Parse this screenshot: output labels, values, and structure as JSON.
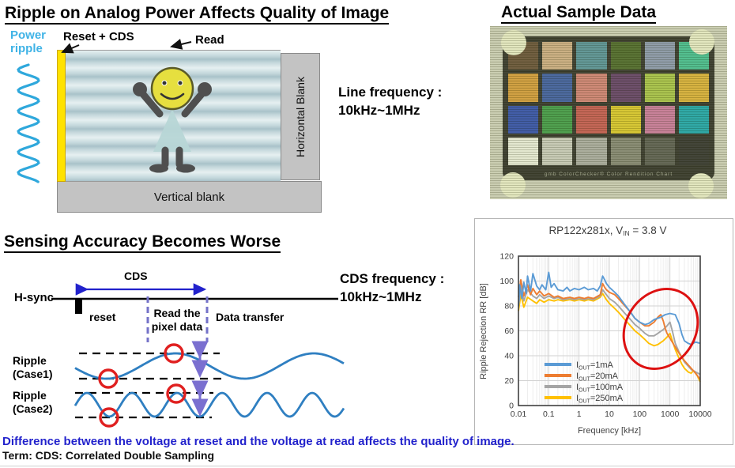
{
  "colors": {
    "power_ripple": "#3fb3e6",
    "cds_arrow": "#2222cc",
    "dashed_guide": "#7472c8",
    "delta_arrow": "#7a6fd0",
    "wave": "#2f7fc1",
    "red_marker": "#dd1111",
    "highlight_text": "#2222cc"
  },
  "sensor_section": {
    "title": "Ripple on Analog Power Affects Quality of Image",
    "power_ripple_label": "Power\nripple",
    "reset_cds_label": "Reset + CDS",
    "read_label": "Read",
    "horizontal_blank_label": "Horizontal Blank",
    "vertical_blank_label": "Vertical blank",
    "line_frequency": "Line frequency :\n10kHz~1MHz"
  },
  "sample_section": {
    "title": "Actual Sample Data",
    "caption": "gmb   ColorChecker® Color Rendition Chart",
    "swatches": [
      "#6e5b3c",
      "#c9ae80",
      "#5f9594",
      "#56702f",
      "#8d9aa6",
      "#4fbd8d",
      "#d09e3e",
      "#47659c",
      "#cd8673",
      "#694a66",
      "#a8c24a",
      "#d6b13c",
      "#3d59a5",
      "#4b9d4a",
      "#c26252",
      "#d6c52f",
      "#c67e96",
      "#2aa6a4",
      "#e3e7cf",
      "#c6c9b4",
      "#a9ac9b",
      "#878a72",
      "#626553",
      "#3e4034"
    ]
  },
  "sensing_section": {
    "title": "Sensing Accuracy Becomes Worse",
    "hsync_label": "H-sync",
    "cds_label": "CDS",
    "reset_label": "reset",
    "read_pixel_label": "Read the\npixel data",
    "data_transfer_label": "Data transfer",
    "cds_frequency": "CDS frequency :\n10kHz~1MHz",
    "ripple_case1_label": "Ripple\n(Case1)",
    "ripple_case2_label": "Ripple\n(Case2)"
  },
  "footer": {
    "highlight": "Difference between the voltage at reset and the voltage at read affects the quality of image.",
    "term": "Term: CDS: Correlated Double Sampling"
  },
  "chart_data": {
    "type": "line",
    "title_prefix": "RP122x281x, V",
    "title_sub": "IN",
    "title_suffix": " = 3.8 V",
    "xlabel": "Frequency [kHz]",
    "ylabel": "Ripple Rejection RR [dB]",
    "x_scale": "log",
    "xlim": [
      0.01,
      10000
    ],
    "ylim": [
      0,
      120
    ],
    "x_ticks": [
      "0.01",
      "0.1",
      "1",
      "10",
      "100",
      "1000",
      "10000"
    ],
    "y_ticks": [
      0,
      20,
      40,
      60,
      80,
      100,
      120
    ],
    "grid": true,
    "legend_position": "lower-left",
    "annotation": "red ellipse highlighting 100-2000 kHz region where ripple rejection peaks then falls",
    "series": [
      {
        "name_prefix": "I",
        "name_sub": "OUT",
        "name_suffix": "=1mA",
        "color": "#5B9BD5",
        "points": [
          [
            0.01,
            80
          ],
          [
            0.011,
            97
          ],
          [
            0.013,
            86
          ],
          [
            0.015,
            99
          ],
          [
            0.018,
            90
          ],
          [
            0.02,
            104
          ],
          [
            0.025,
            92
          ],
          [
            0.03,
            106
          ],
          [
            0.04,
            96
          ],
          [
            0.05,
            93
          ],
          [
            0.06,
            97
          ],
          [
            0.08,
            93
          ],
          [
            0.1,
            107
          ],
          [
            0.12,
            95
          ],
          [
            0.15,
            98
          ],
          [
            0.2,
            93
          ],
          [
            0.3,
            92
          ],
          [
            0.4,
            95
          ],
          [
            0.5,
            92
          ],
          [
            0.7,
            94
          ],
          [
            1,
            93
          ],
          [
            1.5,
            95
          ],
          [
            2,
            93
          ],
          [
            3,
            94
          ],
          [
            4,
            92
          ],
          [
            5,
            96
          ],
          [
            6,
            104
          ],
          [
            7,
            101
          ],
          [
            8,
            98
          ],
          [
            10,
            95
          ],
          [
            15,
            91
          ],
          [
            20,
            88
          ],
          [
            30,
            82
          ],
          [
            50,
            75
          ],
          [
            70,
            70
          ],
          [
            100,
            67
          ],
          [
            150,
            65
          ],
          [
            200,
            66
          ],
          [
            300,
            69
          ],
          [
            500,
            71
          ],
          [
            700,
            73
          ],
          [
            1000,
            74
          ],
          [
            1500,
            73
          ],
          [
            2000,
            66
          ],
          [
            2500,
            57
          ],
          [
            3000,
            52
          ],
          [
            4000,
            50
          ],
          [
            5000,
            49
          ],
          [
            7000,
            51
          ],
          [
            10000,
            50
          ]
        ]
      },
      {
        "name_prefix": "I",
        "name_sub": "OUT",
        "name_suffix": "=20mA",
        "color": "#ED7D31",
        "points": [
          [
            0.01,
            87
          ],
          [
            0.012,
            101
          ],
          [
            0.015,
            88
          ],
          [
            0.02,
            97
          ],
          [
            0.025,
            89
          ],
          [
            0.03,
            94
          ],
          [
            0.04,
            89
          ],
          [
            0.05,
            92
          ],
          [
            0.07,
            88
          ],
          [
            0.1,
            90
          ],
          [
            0.15,
            87
          ],
          [
            0.2,
            88
          ],
          [
            0.3,
            86
          ],
          [
            0.5,
            87
          ],
          [
            0.7,
            86
          ],
          [
            1,
            87
          ],
          [
            1.5,
            86
          ],
          [
            2,
            87
          ],
          [
            3,
            86
          ],
          [
            5,
            89
          ],
          [
            6,
            98
          ],
          [
            7,
            95
          ],
          [
            8,
            93
          ],
          [
            10,
            91
          ],
          [
            15,
            89
          ],
          [
            20,
            86
          ],
          [
            30,
            81
          ],
          [
            50,
            75
          ],
          [
            70,
            70
          ],
          [
            100,
            67
          ],
          [
            150,
            64
          ],
          [
            200,
            64
          ],
          [
            300,
            67
          ],
          [
            400,
            71
          ],
          [
            500,
            73
          ],
          [
            600,
            68
          ],
          [
            700,
            62
          ],
          [
            800,
            58
          ],
          [
            1000,
            54
          ],
          [
            1500,
            47
          ],
          [
            2000,
            42
          ],
          [
            3000,
            36
          ],
          [
            5000,
            30
          ],
          [
            7000,
            26
          ],
          [
            10000,
            21
          ]
        ]
      },
      {
        "name_prefix": "I",
        "name_sub": "OUT",
        "name_suffix": "=100mA",
        "color": "#A5A5A5",
        "points": [
          [
            0.01,
            79
          ],
          [
            0.012,
            96
          ],
          [
            0.015,
            84
          ],
          [
            0.02,
            93
          ],
          [
            0.03,
            88
          ],
          [
            0.04,
            86
          ],
          [
            0.05,
            89
          ],
          [
            0.07,
            86
          ],
          [
            0.1,
            88
          ],
          [
            0.15,
            86
          ],
          [
            0.2,
            87
          ],
          [
            0.3,
            85
          ],
          [
            0.5,
            86
          ],
          [
            0.7,
            85
          ],
          [
            1,
            86
          ],
          [
            1.5,
            85
          ],
          [
            2,
            86
          ],
          [
            3,
            85
          ],
          [
            5,
            88
          ],
          [
            6,
            93
          ],
          [
            8,
            89
          ],
          [
            10,
            86
          ],
          [
            15,
            83
          ],
          [
            20,
            80
          ],
          [
            30,
            75
          ],
          [
            50,
            69
          ],
          [
            70,
            65
          ],
          [
            100,
            62
          ],
          [
            150,
            58
          ],
          [
            200,
            56
          ],
          [
            300,
            56
          ],
          [
            400,
            58
          ],
          [
            600,
            61
          ],
          [
            800,
            64
          ],
          [
            1000,
            67
          ],
          [
            1200,
            60
          ],
          [
            1500,
            50
          ],
          [
            2000,
            43
          ],
          [
            3000,
            35
          ],
          [
            5000,
            29
          ],
          [
            7000,
            27
          ],
          [
            10000,
            25
          ]
        ]
      },
      {
        "name_prefix": "I",
        "name_sub": "OUT",
        "name_suffix": "=250mA",
        "color": "#FFC000",
        "points": [
          [
            0.01,
            76
          ],
          [
            0.012,
            89
          ],
          [
            0.015,
            79
          ],
          [
            0.02,
            87
          ],
          [
            0.03,
            84
          ],
          [
            0.04,
            82
          ],
          [
            0.05,
            85
          ],
          [
            0.07,
            83
          ],
          [
            0.1,
            85
          ],
          [
            0.15,
            84
          ],
          [
            0.2,
            85
          ],
          [
            0.3,
            84
          ],
          [
            0.5,
            85
          ],
          [
            0.7,
            84
          ],
          [
            1,
            85
          ],
          [
            1.5,
            84
          ],
          [
            2,
            85
          ],
          [
            3,
            84
          ],
          [
            5,
            87
          ],
          [
            6,
            90
          ],
          [
            8,
            85
          ],
          [
            10,
            82
          ],
          [
            15,
            78
          ],
          [
            20,
            75
          ],
          [
            30,
            70
          ],
          [
            50,
            64
          ],
          [
            70,
            60
          ],
          [
            100,
            57
          ],
          [
            150,
            53
          ],
          [
            200,
            50
          ],
          [
            300,
            48
          ],
          [
            400,
            49
          ],
          [
            600,
            52
          ],
          [
            800,
            55
          ],
          [
            1000,
            58
          ],
          [
            1200,
            52
          ],
          [
            1500,
            45
          ],
          [
            2000,
            38
          ],
          [
            2500,
            33
          ],
          [
            3000,
            30
          ],
          [
            4000,
            27
          ],
          [
            5000,
            26
          ],
          [
            6000,
            28
          ],
          [
            8000,
            24
          ],
          [
            10000,
            19
          ]
        ]
      }
    ]
  }
}
